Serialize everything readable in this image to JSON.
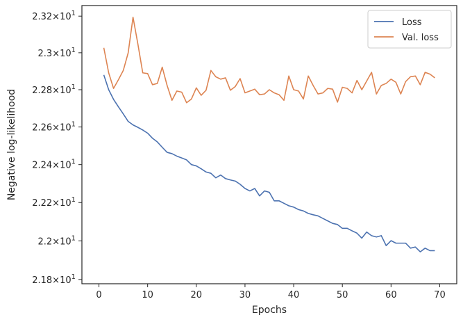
{
  "chart_data": {
    "type": "line",
    "title": "",
    "xlabel": "Epochs",
    "ylabel": "Negative log-likelihood",
    "xlim": [
      -3.5,
      73.5
    ],
    "ylim": [
      21.778,
      23.258
    ],
    "y_scale": "log",
    "grid": false,
    "legend_position": "top-right",
    "x_ticks": [
      0,
      10,
      20,
      30,
      40,
      50,
      60,
      70
    ],
    "x_tick_labels": [
      "0",
      "10",
      "20",
      "30",
      "40",
      "50",
      "60",
      "70"
    ],
    "y_ticks": [
      21.8,
      22.0,
      22.2,
      22.4,
      22.6,
      22.8,
      23.0,
      23.2
    ],
    "y_tick_labels": [
      {
        "base": "2.18",
        "exp": "1"
      },
      {
        "base": "2.2",
        "exp": "1"
      },
      {
        "base": "2.22",
        "exp": "1"
      },
      {
        "base": "2.24",
        "exp": "1"
      },
      {
        "base": "2.26",
        "exp": "1"
      },
      {
        "base": "2.28",
        "exp": "1"
      },
      {
        "base": "2.3",
        "exp": "1"
      },
      {
        "base": "2.32",
        "exp": "1"
      }
    ],
    "x": [
      1,
      2,
      3,
      4,
      5,
      6,
      7,
      8,
      9,
      10,
      11,
      12,
      13,
      14,
      15,
      16,
      17,
      18,
      19,
      20,
      21,
      22,
      23,
      24,
      25,
      26,
      27,
      28,
      29,
      30,
      31,
      32,
      33,
      34,
      35,
      36,
      37,
      38,
      39,
      40,
      41,
      42,
      43,
      44,
      45,
      46,
      47,
      48,
      49,
      50,
      51,
      52,
      53,
      54,
      55,
      56,
      57,
      58,
      59,
      60,
      61,
      62,
      63,
      64,
      65,
      66,
      67,
      68,
      69
    ],
    "series": [
      {
        "name": "Loss",
        "color": "#4c72b0",
        "values": [
          22.88,
          22.8,
          22.748,
          22.708,
          22.67,
          22.63,
          22.611,
          22.598,
          22.584,
          22.567,
          22.54,
          22.52,
          22.492,
          22.465,
          22.458,
          22.445,
          22.435,
          22.425,
          22.4,
          22.393,
          22.378,
          22.361,
          22.354,
          22.33,
          22.345,
          22.326,
          22.319,
          22.313,
          22.296,
          22.274,
          22.261,
          22.274,
          22.235,
          22.261,
          22.254,
          22.209,
          22.209,
          22.196,
          22.183,
          22.176,
          22.163,
          22.156,
          22.143,
          22.136,
          22.13,
          22.117,
          22.104,
          22.091,
          22.085,
          22.065,
          22.065,
          22.052,
          22.04,
          22.014,
          22.046,
          22.027,
          22.02,
          22.027,
          21.975,
          22.001,
          21.988,
          21.988,
          21.988,
          21.962,
          21.968,
          21.943,
          21.962,
          21.949,
          21.949
        ]
      },
      {
        "name": "Val. loss",
        "color": "#dd8452",
        "values": [
          23.027,
          22.891,
          22.807,
          22.854,
          22.904,
          22.999,
          23.194,
          23.047,
          22.891,
          22.887,
          22.827,
          22.834,
          22.922,
          22.823,
          22.743,
          22.793,
          22.787,
          22.73,
          22.75,
          22.81,
          22.77,
          22.797,
          22.904,
          22.87,
          22.857,
          22.864,
          22.797,
          22.817,
          22.86,
          22.783,
          22.793,
          22.803,
          22.773,
          22.777,
          22.8,
          22.783,
          22.773,
          22.743,
          22.874,
          22.8,
          22.793,
          22.75,
          22.874,
          22.823,
          22.777,
          22.783,
          22.807,
          22.803,
          22.733,
          22.813,
          22.807,
          22.783,
          22.85,
          22.8,
          22.847,
          22.894,
          22.777,
          22.823,
          22.834,
          22.857,
          22.84,
          22.777,
          22.844,
          22.87,
          22.874,
          22.827,
          22.894,
          22.884,
          22.864
        ]
      }
    ]
  }
}
